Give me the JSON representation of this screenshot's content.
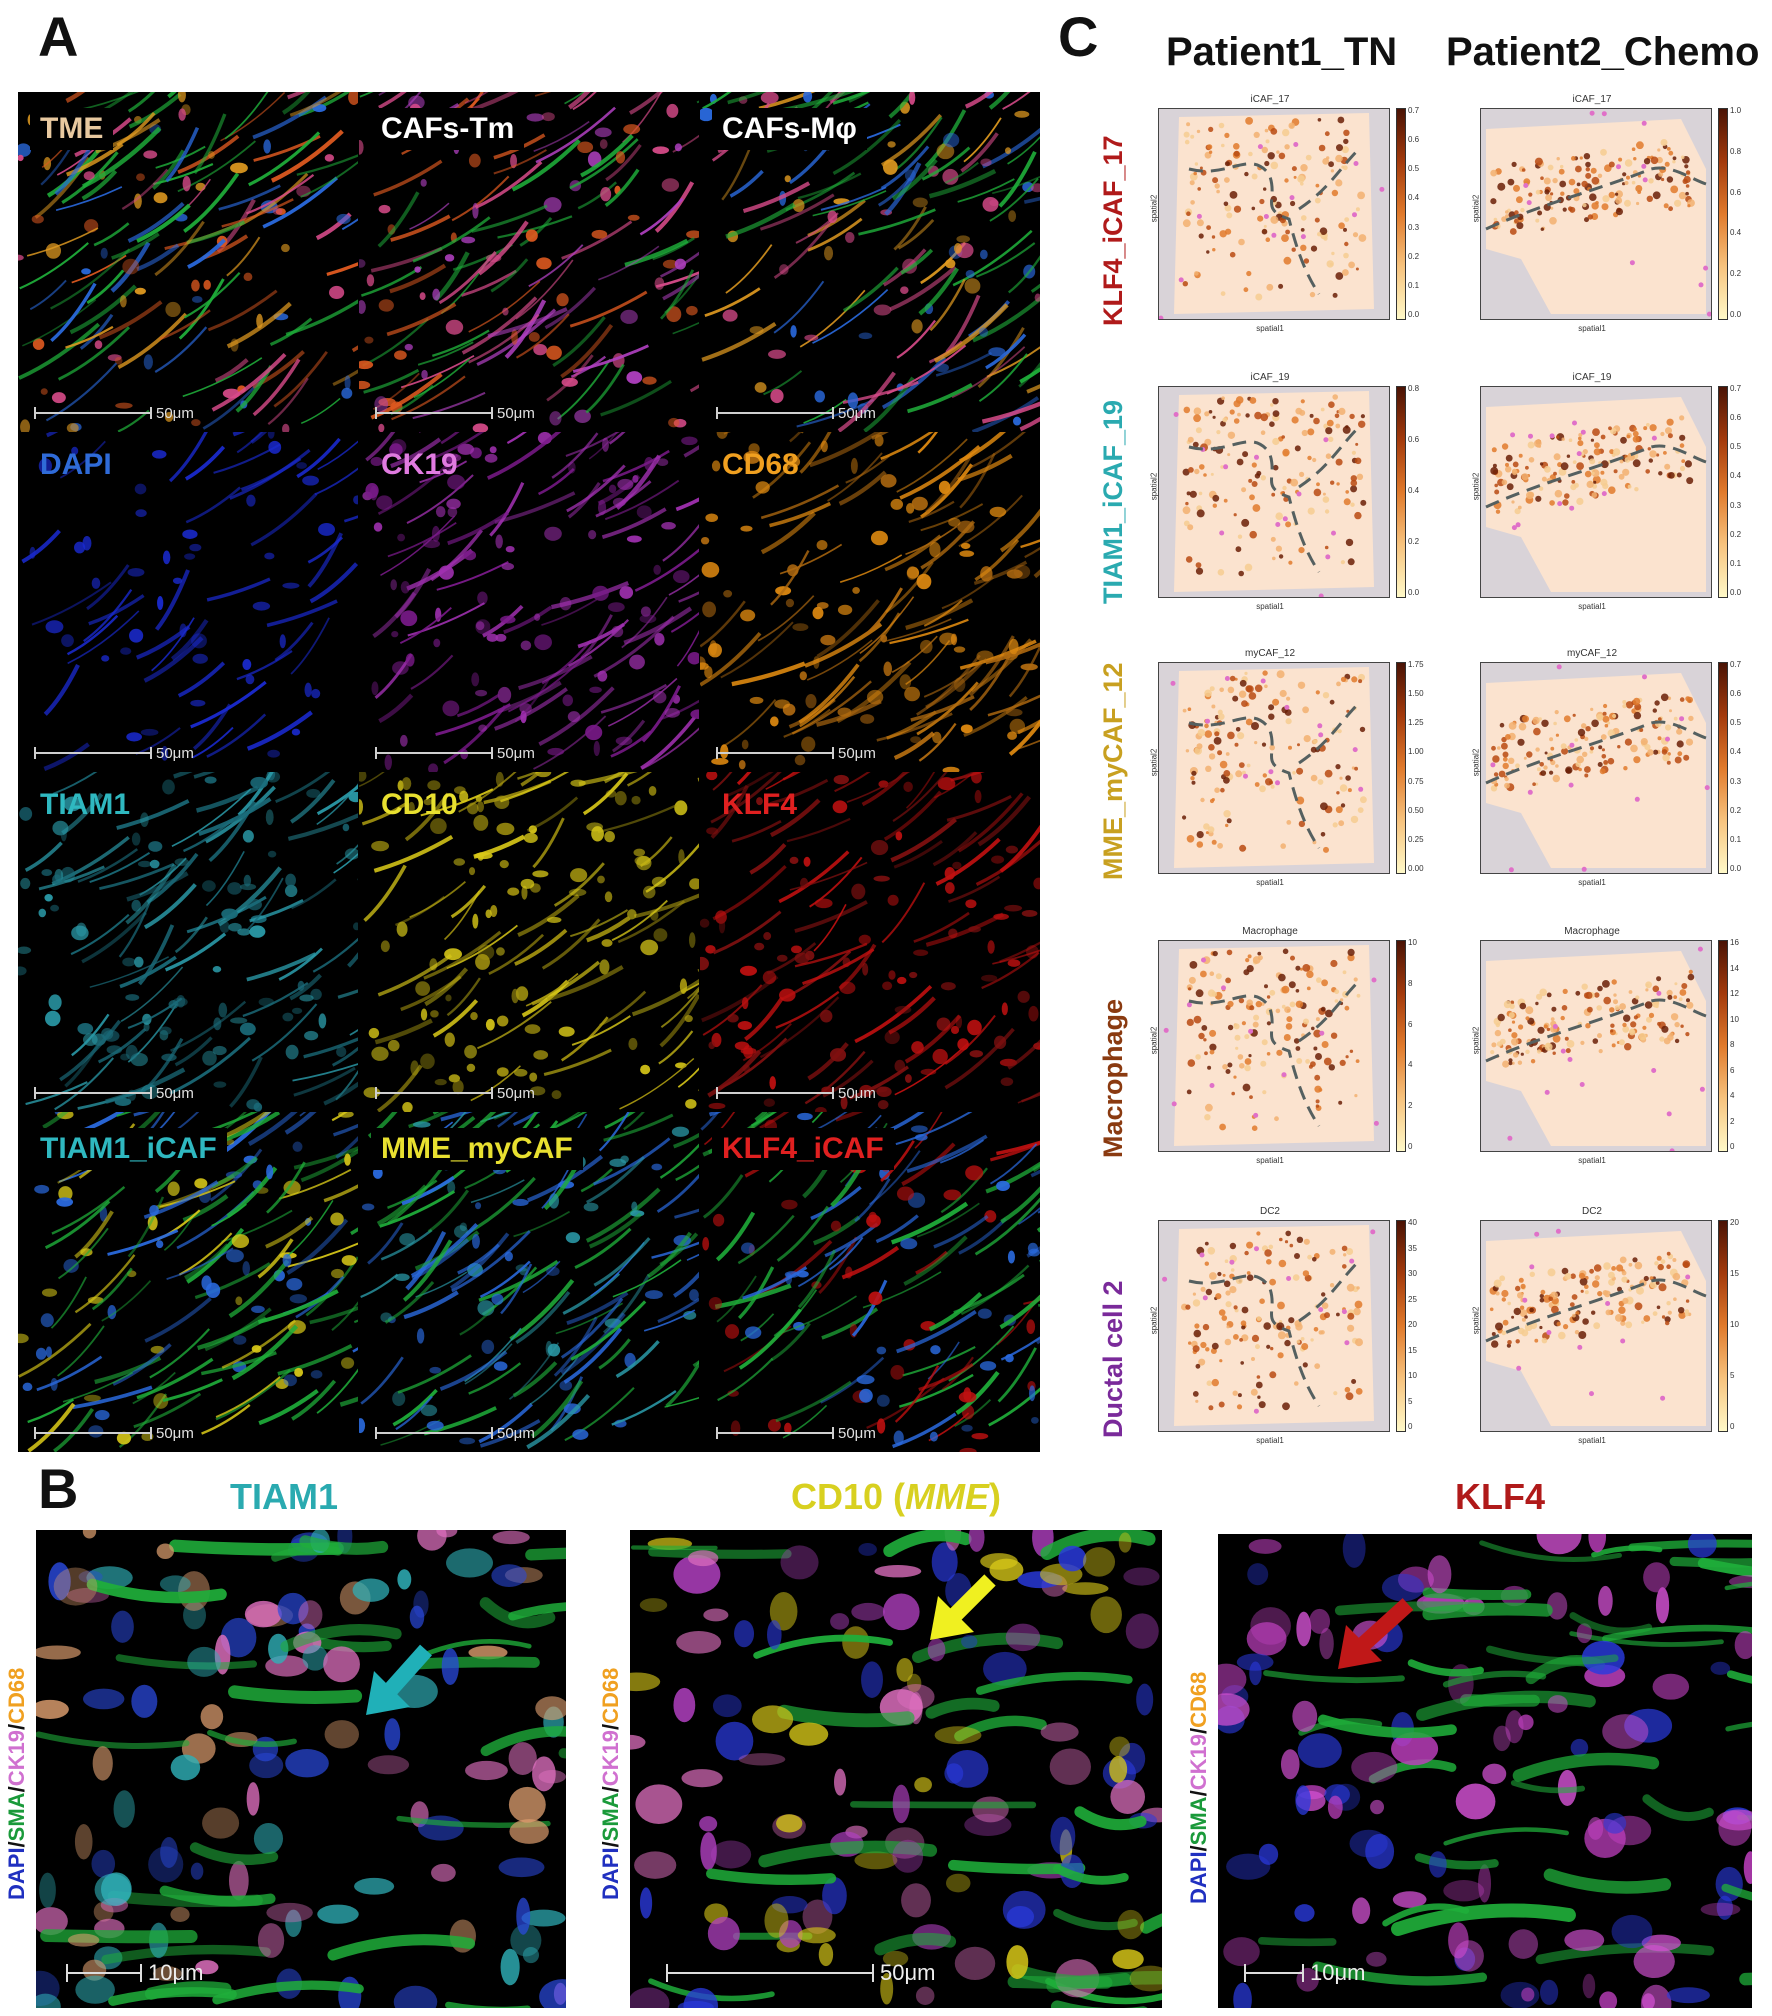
{
  "panel_labels": {
    "a": "A",
    "b": "B",
    "c": "C"
  },
  "panelA": {
    "tiles": [
      {
        "label": "TME",
        "color": "#e8c9a0",
        "scale": "50μm"
      },
      {
        "label": "CAFs-Tm",
        "color": "#ffffff",
        "scale": "50μm"
      },
      {
        "label": "CAFs-Mφ",
        "color": "#ffffff",
        "scale": "50μm"
      },
      {
        "label": "DAPI",
        "color": "#2f6bd8",
        "scale": "50μm"
      },
      {
        "label": "CK19",
        "color": "#e07be0",
        "scale": "50μm"
      },
      {
        "label": "CD68",
        "color": "#f0a020",
        "scale": "50μm"
      },
      {
        "label": "TIAM1",
        "color": "#2fb8c0",
        "scale": "50μm"
      },
      {
        "label": "CD10",
        "color": "#e8e030",
        "scale": "50μm"
      },
      {
        "label": "KLF4",
        "color": "#e02020",
        "scale": "50μm"
      },
      {
        "label": "TIAM1_iCAF",
        "color": "#2fb8c0",
        "scale": "50μm"
      },
      {
        "label": "MME_myCAF",
        "color": "#e8e030",
        "scale": "50μm"
      },
      {
        "label": "KLF4_iCAF",
        "color": "#e02020",
        "scale": "50μm"
      }
    ]
  },
  "panelC": {
    "col1": "Patient1_TN",
    "col2": "Patient2_Chemo",
    "rows": [
      {
        "label": "KLF4_iCAF_17",
        "color": "#b01a1a",
        "title": "iCAF_17",
        "ticks1": [
          "0.7",
          "0.6",
          "0.5",
          "0.4",
          "0.3",
          "0.2",
          "0.1",
          "0.0"
        ],
        "ticks2": [
          "1.0",
          "0.8",
          "0.6",
          "0.4",
          "0.2",
          "0.0"
        ]
      },
      {
        "label": "TIAM1_iCAF_19",
        "color": "#2aaab0",
        "title": "iCAF_19",
        "ticks1": [
          "0.8",
          "0.6",
          "0.4",
          "0.2",
          "0.0"
        ],
        "ticks2": [
          "0.7",
          "0.6",
          "0.5",
          "0.4",
          "0.3",
          "0.2",
          "0.1",
          "0.0"
        ]
      },
      {
        "label": "MME_myCAF_12",
        "color": "#c8a020",
        "title": "myCAF_12",
        "ticks1": [
          "1.75",
          "1.50",
          "1.25",
          "1.00",
          "0.75",
          "0.50",
          "0.25",
          "0.00"
        ],
        "ticks2": [
          "0.7",
          "0.6",
          "0.5",
          "0.4",
          "0.3",
          "0.2",
          "0.1",
          "0.0"
        ]
      },
      {
        "label": "Macrophage",
        "color": "#8a3a10",
        "title": "Macrophage",
        "ticks1": [
          "10",
          "8",
          "6",
          "4",
          "2",
          "0"
        ],
        "ticks2": [
          "16",
          "14",
          "12",
          "10",
          "8",
          "6",
          "4",
          "2",
          "0"
        ]
      },
      {
        "label": "Ductal cell 2",
        "color": "#7a2a9a",
        "title": "DC2",
        "ticks1": [
          "40",
          "35",
          "30",
          "25",
          "20",
          "15",
          "10",
          "5",
          "0"
        ],
        "ticks2": [
          "20",
          "15",
          "10",
          "5",
          "0"
        ]
      }
    ],
    "xlabel": "spatial1",
    "ylabel": "spatial2"
  },
  "panelB": {
    "titles": [
      {
        "pre": "TIAM1",
        "italic": "",
        "post": "",
        "color": "#2aaab0"
      },
      {
        "pre": "CD10 (",
        "italic": "MME",
        "post": ")",
        "color": "#d8d020"
      },
      {
        "pre": "KLF4",
        "italic": "",
        "post": "",
        "color": "#b01a1a"
      }
    ],
    "stain": {
      "dapi": "DAPI",
      "sma": "SMA",
      "ck19": "CK19",
      "cd68": "CD68",
      "sep": "/"
    },
    "scales": [
      "10μm",
      "50μm",
      "10μm"
    ]
  }
}
